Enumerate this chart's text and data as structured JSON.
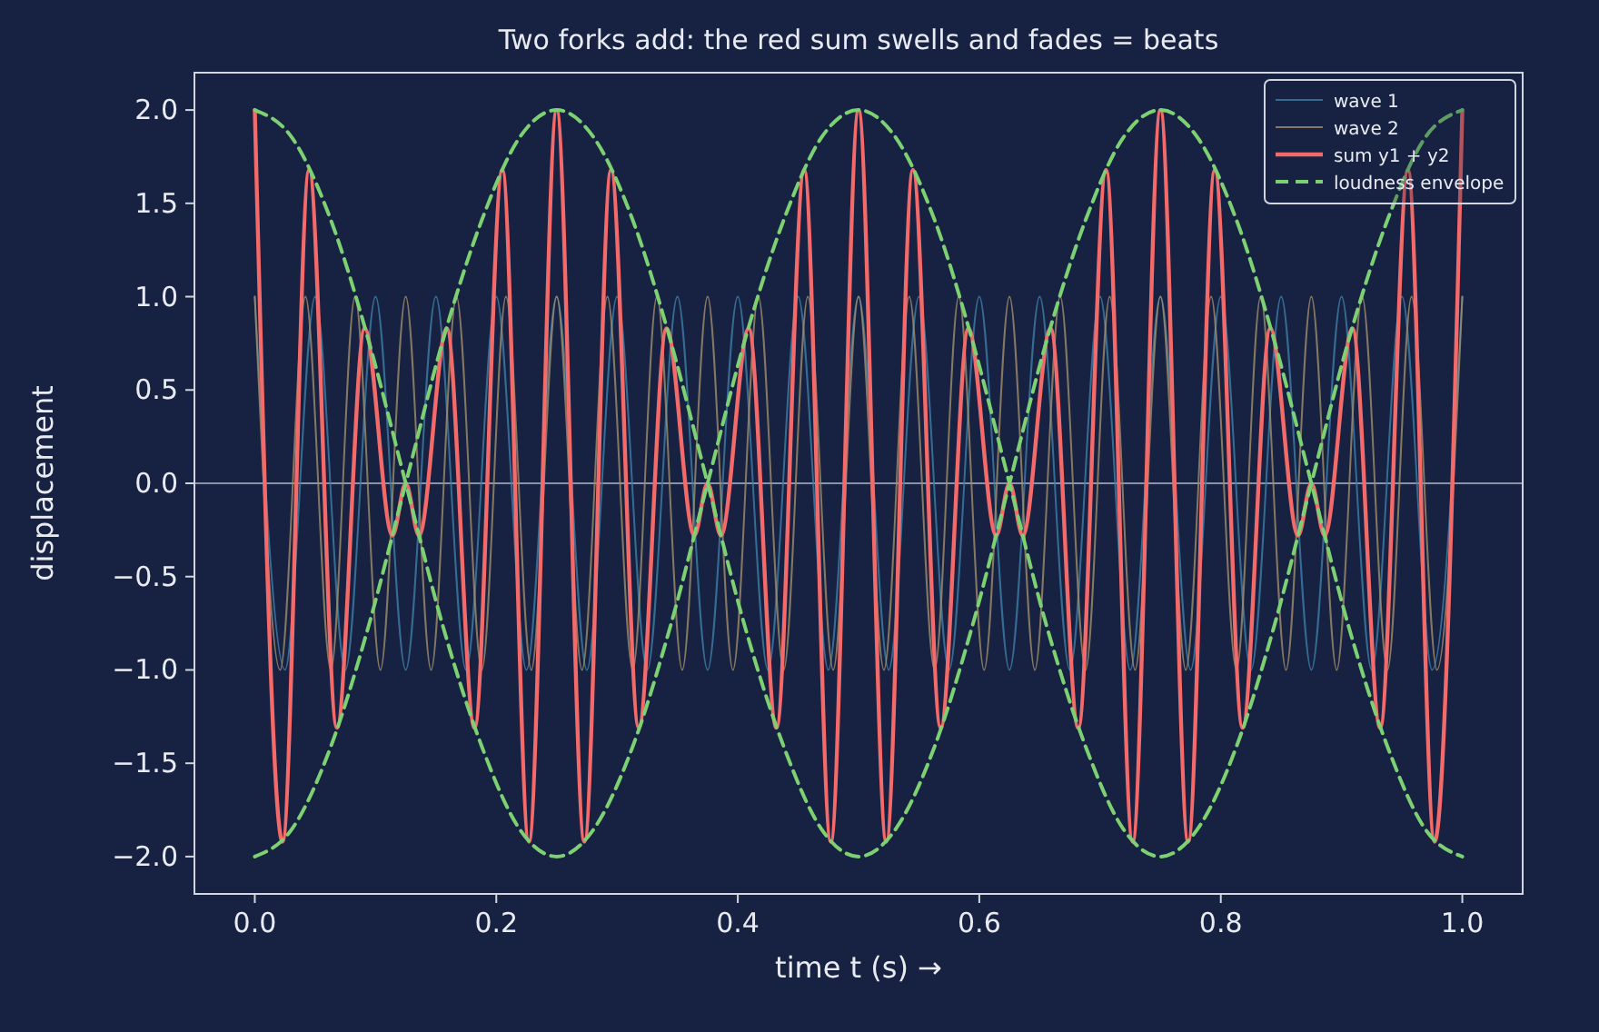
{
  "chart_data": {
    "type": "line",
    "title": "Two forks add: the red sum swells and fades = beats",
    "xlabel": "time t (s) →",
    "ylabel": "displacement",
    "xlim": [
      -0.05,
      1.05
    ],
    "xticks": [
      {
        "value": 0,
        "label": "0.0"
      },
      {
        "value": 0.2,
        "label": "0.2"
      },
      {
        "value": 0.4,
        "label": "0.4"
      },
      {
        "value": 0.6,
        "label": "0.6"
      },
      {
        "value": 0.8,
        "label": "0.8"
      },
      {
        "value": 1,
        "label": "1.0"
      }
    ],
    "ylim": [
      -2.2,
      2.2
    ],
    "yticks": [
      {
        "value": -2,
        "label": "−2.0"
      },
      {
        "value": -1.5,
        "label": "−1.5"
      },
      {
        "value": -1,
        "label": "−1.0"
      },
      {
        "value": -0.5,
        "label": "−0.5"
      },
      {
        "value": 0,
        "label": "0.0"
      },
      {
        "value": 0.5,
        "label": "0.5"
      },
      {
        "value": 1,
        "label": "1.0"
      },
      {
        "value": 1.5,
        "label": "1.5"
      },
      {
        "value": 2,
        "label": "2.0"
      }
    ],
    "grid": false,
    "legend": "top right",
    "line_style": "solid",
    "ref_lines": [
      {
        "axis": "y",
        "value": 0,
        "label": null,
        "color": "#8a93a8"
      }
    ],
    "series": [
      {
        "name": "wave 1",
        "color": "#3f7fa8",
        "x": [
          0,
          0.025,
          0.05,
          0.075,
          0.1,
          0.125,
          0.15,
          0.175,
          0.2,
          0.225,
          0.25,
          0.275,
          0.3,
          0.325,
          0.35,
          0.375,
          0.4,
          0.425,
          0.45,
          0.475,
          0.5,
          0.525,
          0.55,
          0.575,
          0.6,
          0.625,
          0.65,
          0.675,
          0.7,
          0.725,
          0.75,
          0.775,
          0.8,
          0.825,
          0.85,
          0.875,
          0.9,
          0.925,
          0.95,
          0.975,
          1
        ],
        "values": [
          1,
          -1,
          1,
          -1,
          1,
          -1,
          1,
          -1,
          1,
          -1,
          1,
          -1,
          1,
          -1,
          1,
          -1,
          1,
          -1,
          1,
          -1,
          1,
          -1,
          1,
          -1,
          1,
          -1,
          1,
          -1,
          1,
          -1,
          1,
          -1,
          1,
          -1,
          1,
          -1,
          1,
          -1,
          1,
          -1,
          1
        ]
      },
      {
        "name": "wave 2",
        "color": "#a08e6c",
        "x": [
          0,
          0.021,
          0.042,
          0.063,
          0.083,
          0.104,
          0.125,
          0.146,
          0.167,
          0.188,
          0.208,
          0.229,
          0.25,
          0.271,
          0.292,
          0.313,
          0.333,
          0.354,
          0.375,
          0.396,
          0.417,
          0.438,
          0.458,
          0.479,
          0.5,
          0.521,
          0.542,
          0.563,
          0.583,
          0.604,
          0.625,
          0.646,
          0.667,
          0.688,
          0.708,
          0.729,
          0.75,
          0.771,
          0.792,
          0.813,
          0.833,
          0.854,
          0.875,
          0.896,
          0.917,
          0.938,
          0.958,
          0.979,
          1
        ],
        "values": [
          1,
          -1,
          1,
          -1,
          1,
          -1,
          1,
          -1,
          1,
          -1,
          1,
          -1,
          1,
          -1,
          1,
          -1,
          1,
          -1,
          1,
          -1,
          1,
          -1,
          1,
          -1,
          1,
          -1,
          1,
          -1,
          1,
          -1,
          1,
          -1,
          1,
          -1,
          1,
          -1,
          1,
          -1,
          1,
          -1,
          1,
          -1,
          1,
          -1,
          1,
          -1,
          1,
          -1,
          1
        ]
      },
      {
        "name": "sum y1 + y2",
        "color": "#f26a6a",
        "x": [
          0,
          0.023,
          0.045,
          0.068,
          0.091,
          0.114,
          0.125,
          0.136,
          0.159,
          0.182,
          0.205,
          0.227,
          0.25,
          0.273,
          0.295,
          0.318,
          0.341,
          0.364,
          0.375,
          0.386,
          0.409,
          0.432,
          0.455,
          0.477,
          0.5,
          0.523,
          0.545,
          0.568,
          0.591,
          0.614,
          0.625,
          0.636,
          0.659,
          0.682,
          0.705,
          0.727,
          0.75,
          0.773,
          0.795,
          0.818,
          0.841,
          0.864,
          0.875,
          0.886,
          0.909,
          0.932,
          0.955,
          0.977,
          1
        ],
        "values": [
          2,
          -1.92,
          1.68,
          -1.31,
          0.83,
          -0.28,
          0,
          -0.28,
          0.83,
          -1.31,
          1.68,
          -1.92,
          2,
          -1.92,
          1.68,
          -1.31,
          0.83,
          -0.28,
          0,
          -0.28,
          0.83,
          -1.31,
          1.68,
          -1.92,
          2,
          -1.92,
          1.68,
          -1.31,
          0.83,
          -0.28,
          0,
          -0.28,
          0.83,
          -1.31,
          1.68,
          -1.92,
          2,
          -1.92,
          1.68,
          -1.31,
          0.83,
          -0.28,
          0,
          -0.28,
          0.83,
          -1.31,
          1.68,
          -1.92,
          2
        ]
      },
      {
        "name": "loudness envelope",
        "color": "#7dd173",
        "line_style": "dashed",
        "x": [
          0,
          0.031,
          0.063,
          0.094,
          0.125,
          0.156,
          0.188,
          0.219,
          0.25,
          0.281,
          0.313,
          0.344,
          0.375,
          0.406,
          0.438,
          0.469,
          0.5,
          0.531,
          0.563,
          0.594,
          0.625,
          0.656,
          0.688,
          0.719,
          0.75,
          0.781,
          0.813,
          0.844,
          0.875,
          0.906,
          0.938,
          0.969,
          1
        ],
        "values": [
          2,
          1.85,
          1.41,
          0.77,
          0,
          -0.77,
          -1.41,
          -1.85,
          -2,
          -1.85,
          -1.41,
          -0.77,
          0,
          0.77,
          1.41,
          1.85,
          2,
          1.85,
          1.41,
          0.77,
          0,
          -0.77,
          -1.41,
          -1.85,
          -2,
          -1.85,
          -1.41,
          -0.77,
          0,
          0.77,
          1.41,
          1.85,
          2
        ]
      },
      {
        "color": "#7dd173",
        "line_style": "dashed",
        "x": [
          0,
          0.031,
          0.063,
          0.094,
          0.125,
          0.156,
          0.188,
          0.219,
          0.25,
          0.281,
          0.313,
          0.344,
          0.375,
          0.406,
          0.438,
          0.469,
          0.5,
          0.531,
          0.563,
          0.594,
          0.625,
          0.656,
          0.688,
          0.719,
          0.75,
          0.781,
          0.813,
          0.844,
          0.875,
          0.906,
          0.938,
          0.969,
          1
        ],
        "values": [
          -2,
          -1.85,
          -1.41,
          -0.77,
          0,
          0.77,
          1.41,
          1.85,
          2,
          1.85,
          1.41,
          0.77,
          0,
          -0.77,
          -1.41,
          -1.85,
          -2,
          -1.85,
          -1.41,
          -0.77,
          0,
          0.77,
          1.41,
          1.85,
          2,
          1.85,
          1.41,
          0.77,
          0,
          -0.77,
          -1.41,
          -1.85,
          -2
        ]
      }
    ]
  }
}
